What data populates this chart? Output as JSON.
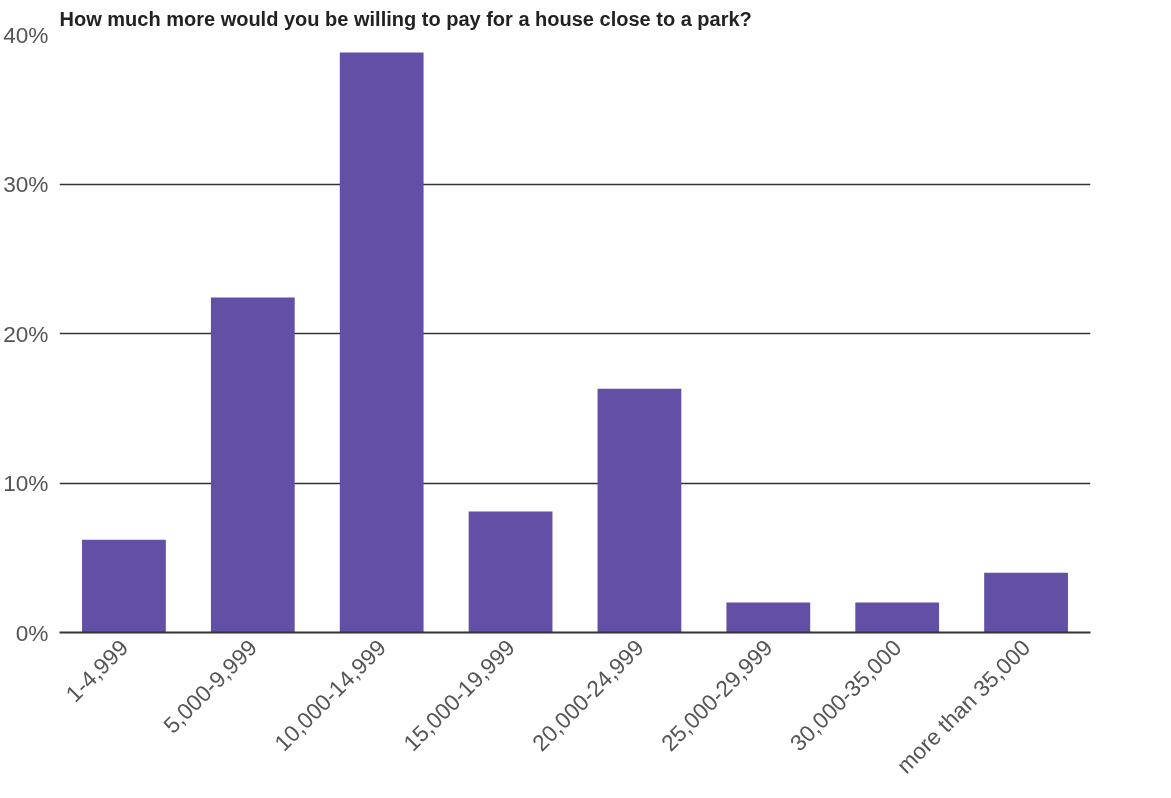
{
  "chart_data": {
    "type": "bar",
    "title": "How much more would you be willing to pay for a house close to a park?",
    "categories": [
      "1-4,999",
      "5,000-9,999",
      "10,000-14,999",
      "15,000-19,999",
      "20,000-24,999",
      "25,000-29,999",
      "30,000-35,000",
      "more than 35,000"
    ],
    "values": [
      6.2,
      22.4,
      38.8,
      8.1,
      16.3,
      2.0,
      2.0,
      4.0
    ],
    "color": "#634fa5",
    "ylim": [
      0,
      40
    ],
    "yticks": [
      {
        "value": 0,
        "label": "0%"
      },
      {
        "value": 10,
        "label": "10%"
      },
      {
        "value": 20,
        "label": "20%"
      },
      {
        "value": 30,
        "label": "30%"
      },
      {
        "value": 40,
        "label": "40%"
      }
    ],
    "grid": "y"
  }
}
